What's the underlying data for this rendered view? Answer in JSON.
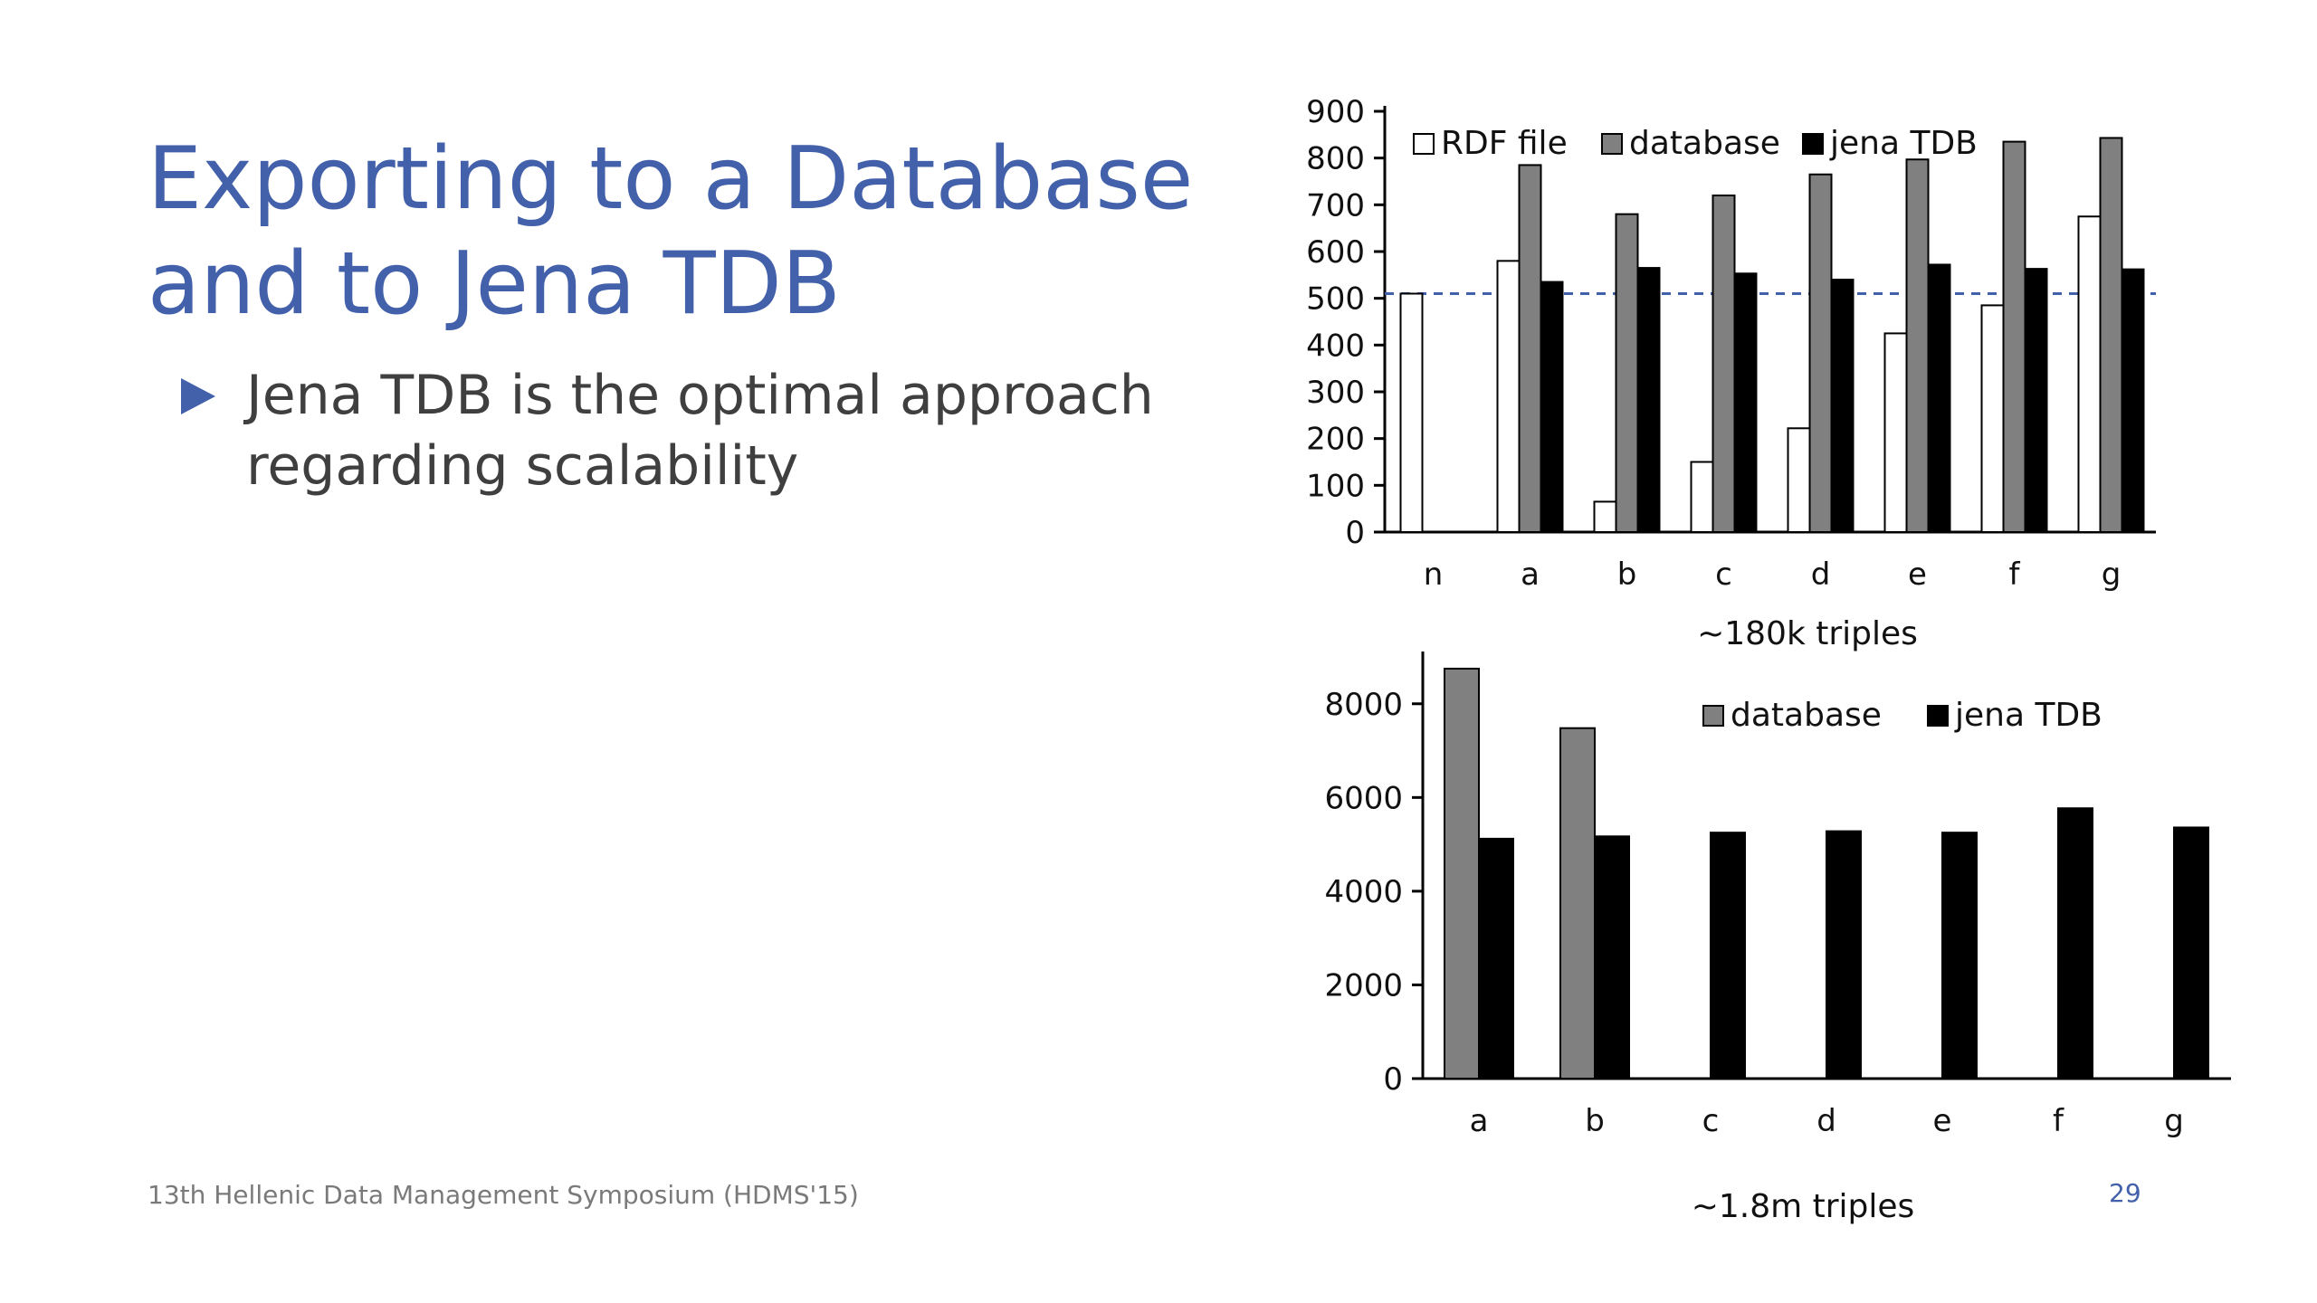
{
  "slide": {
    "title_lines": [
      "Exporting to a Database",
      "and to Jena TDB"
    ],
    "bullets": [
      "Jena TDB is the optimal approach regarding scalability"
    ],
    "footer": "13th Hellenic Data Management Symposium (HDMS'15)",
    "page_number": "29"
  },
  "colors": {
    "title": "#4360aa",
    "rdf_file": "#ffffff",
    "database": "#808080",
    "jena_tdb": "#000000",
    "dashed_line": "#4360aa"
  },
  "chart_data": [
    {
      "type": "bar",
      "caption": "~180k triples",
      "categories": [
        "n",
        "a",
        "b",
        "c",
        "d",
        "e",
        "f",
        "g"
      ],
      "series": [
        {
          "name": "RDF file",
          "values": [
            510,
            580,
            65,
            150,
            222,
            425,
            485,
            675
          ]
        },
        {
          "name": "database",
          "values": [
            null,
            785,
            680,
            720,
            765,
            797,
            835,
            843
          ]
        },
        {
          "name": "jena TDB",
          "values": [
            null,
            535,
            565,
            553,
            540,
            572,
            563,
            562
          ]
        }
      ],
      "yticks": [
        0,
        100,
        200,
        300,
        400,
        500,
        600,
        700,
        800,
        900
      ],
      "ylim": [
        0,
        900
      ],
      "reference_line": 510,
      "legend": "top"
    },
    {
      "type": "bar",
      "caption": "~1.8m triples",
      "categories": [
        "a",
        "b",
        "c",
        "d",
        "e",
        "f",
        "g"
      ],
      "series": [
        {
          "name": "database",
          "values": [
            8750,
            7480,
            null,
            null,
            null,
            null,
            null
          ]
        },
        {
          "name": "jena TDB",
          "values": [
            5120,
            5170,
            5250,
            5280,
            5250,
            5770,
            5360
          ]
        }
      ],
      "yticks": [
        0,
        2000,
        4000,
        6000,
        8000
      ],
      "ylim": [
        0,
        9000
      ],
      "legend": "top-right"
    }
  ]
}
